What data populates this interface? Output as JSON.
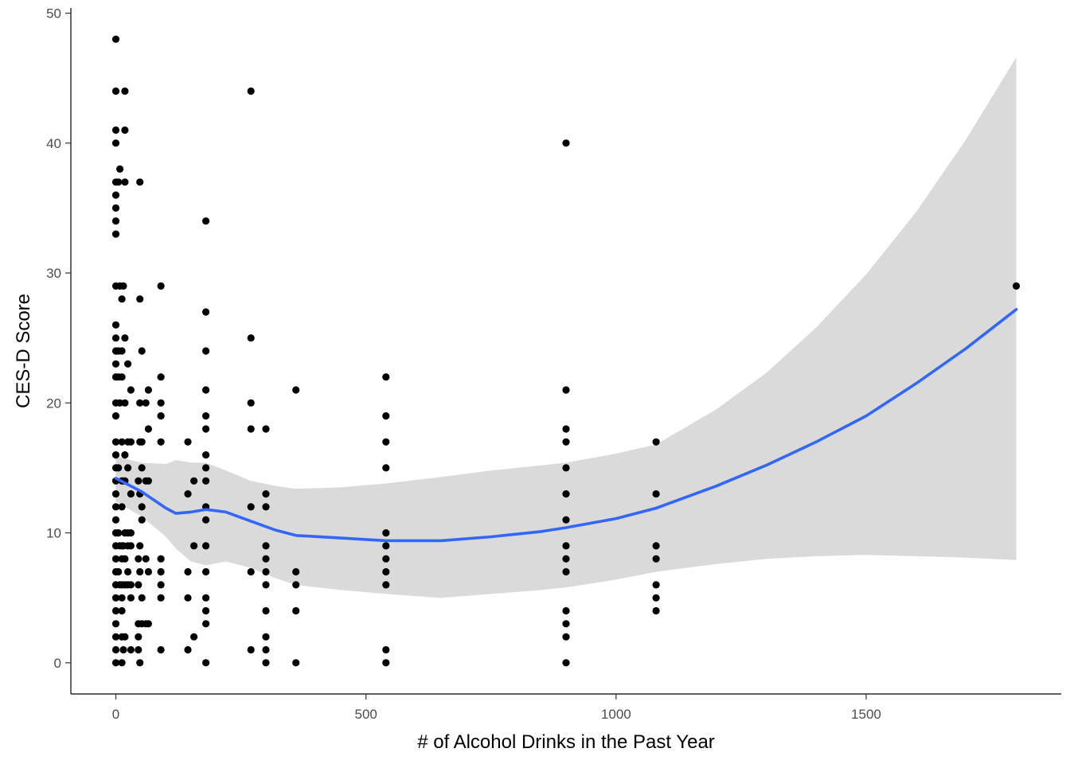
{
  "chart_data": {
    "type": "scatter",
    "title": "",
    "xlabel": "# of Alcohol Drinks in the Past Year",
    "ylabel": "CES-D Score",
    "xlim": [
      -90,
      1890
    ],
    "ylim": [
      -2.4,
      50.4
    ],
    "x_ticks": [
      0,
      500,
      1000,
      1500
    ],
    "y_ticks": [
      0,
      10,
      20,
      30,
      40,
      50
    ],
    "x_tick_labels": [
      "0",
      "500",
      "1000",
      "1500"
    ],
    "y_tick_labels": [
      "0",
      "10",
      "20",
      "30",
      "40",
      "50"
    ],
    "grid": false,
    "legend": "none",
    "colors": {
      "points": "#000000",
      "smooth_line": "#3366FF",
      "confidence_band": "#d6d6d6"
    },
    "points": [
      [
        0,
        48
      ],
      [
        0,
        44
      ],
      [
        0,
        41
      ],
      [
        0,
        40
      ],
      [
        0,
        37
      ],
      [
        0,
        36
      ],
      [
        0,
        35
      ],
      [
        0,
        34
      ],
      [
        0,
        33
      ],
      [
        0,
        29
      ],
      [
        0,
        26
      ],
      [
        0,
        25
      ],
      [
        0,
        24
      ],
      [
        0,
        23
      ],
      [
        0,
        22
      ],
      [
        0,
        20
      ],
      [
        0,
        19
      ],
      [
        0,
        17
      ],
      [
        0,
        16
      ],
      [
        0,
        15
      ],
      [
        0,
        14
      ],
      [
        0,
        13
      ],
      [
        0,
        12
      ],
      [
        0,
        11
      ],
      [
        0,
        10
      ],
      [
        0,
        9
      ],
      [
        0,
        8
      ],
      [
        0,
        7
      ],
      [
        0,
        6
      ],
      [
        0,
        5
      ],
      [
        0,
        4
      ],
      [
        0,
        3
      ],
      [
        0,
        2
      ],
      [
        0,
        1
      ],
      [
        0,
        0
      ],
      [
        5,
        37
      ],
      [
        5,
        24
      ],
      [
        5,
        22
      ],
      [
        5,
        15
      ],
      [
        5,
        10
      ],
      [
        5,
        7
      ],
      [
        8,
        38
      ],
      [
        8,
        29
      ],
      [
        8,
        20
      ],
      [
        8,
        9
      ],
      [
        8,
        6
      ],
      [
        12,
        28
      ],
      [
        12,
        24
      ],
      [
        12,
        22
      ],
      [
        12,
        17
      ],
      [
        12,
        14
      ],
      [
        12,
        12
      ],
      [
        12,
        9
      ],
      [
        12,
        8
      ],
      [
        12,
        6
      ],
      [
        12,
        5
      ],
      [
        12,
        4
      ],
      [
        12,
        2
      ],
      [
        12,
        0
      ],
      [
        15,
        29
      ],
      [
        15,
        14
      ],
      [
        15,
        9
      ],
      [
        15,
        1
      ],
      [
        18,
        44
      ],
      [
        18,
        41
      ],
      [
        18,
        37
      ],
      [
        18,
        25
      ],
      [
        18,
        20
      ],
      [
        18,
        16
      ],
      [
        18,
        14
      ],
      [
        18,
        10
      ],
      [
        18,
        8
      ],
      [
        18,
        6
      ],
      [
        18,
        2
      ],
      [
        24,
        23
      ],
      [
        24,
        17
      ],
      [
        24,
        15
      ],
      [
        24,
        10
      ],
      [
        24,
        9
      ],
      [
        24,
        7
      ],
      [
        24,
        6
      ],
      [
        30,
        21
      ],
      [
        30,
        17
      ],
      [
        30,
        13
      ],
      [
        30,
        10
      ],
      [
        30,
        9
      ],
      [
        30,
        6
      ],
      [
        30,
        5
      ],
      [
        30,
        1
      ],
      [
        45,
        14
      ],
      [
        45,
        8
      ],
      [
        45,
        6
      ],
      [
        45,
        3
      ],
      [
        45,
        2
      ],
      [
        45,
        1
      ],
      [
        48,
        37
      ],
      [
        48,
        28
      ],
      [
        48,
        20
      ],
      [
        48,
        17
      ],
      [
        48,
        13
      ],
      [
        48,
        9
      ],
      [
        48,
        7
      ],
      [
        48,
        0
      ],
      [
        52,
        24
      ],
      [
        52,
        17
      ],
      [
        52,
        15
      ],
      [
        52,
        12
      ],
      [
        52,
        11
      ],
      [
        52,
        5
      ],
      [
        52,
        3
      ],
      [
        60,
        20
      ],
      [
        60,
        14
      ],
      [
        60,
        8
      ],
      [
        60,
        3
      ],
      [
        65,
        21
      ],
      [
        65,
        18
      ],
      [
        65,
        14
      ],
      [
        65,
        7
      ],
      [
        65,
        3
      ],
      [
        90,
        29
      ],
      [
        90,
        22
      ],
      [
        90,
        20
      ],
      [
        90,
        19
      ],
      [
        90,
        17
      ],
      [
        90,
        8
      ],
      [
        90,
        7
      ],
      [
        90,
        6
      ],
      [
        90,
        5
      ],
      [
        90,
        1
      ],
      [
        144,
        17
      ],
      [
        144,
        13
      ],
      [
        144,
        7
      ],
      [
        144,
        5
      ],
      [
        144,
        1
      ],
      [
        156,
        14
      ],
      [
        156,
        9
      ],
      [
        156,
        2
      ],
      [
        180,
        34
      ],
      [
        180,
        27
      ],
      [
        180,
        24
      ],
      [
        180,
        21
      ],
      [
        180,
        19
      ],
      [
        180,
        18
      ],
      [
        180,
        16
      ],
      [
        180,
        15
      ],
      [
        180,
        14
      ],
      [
        180,
        12
      ],
      [
        180,
        11
      ],
      [
        180,
        9
      ],
      [
        180,
        7
      ],
      [
        180,
        5
      ],
      [
        180,
        4
      ],
      [
        180,
        3
      ],
      [
        180,
        0
      ],
      [
        270,
        44
      ],
      [
        270,
        25
      ],
      [
        270,
        20
      ],
      [
        270,
        18
      ],
      [
        270,
        12
      ],
      [
        270,
        7
      ],
      [
        270,
        1
      ],
      [
        300,
        18
      ],
      [
        300,
        13
      ],
      [
        300,
        12
      ],
      [
        300,
        9
      ],
      [
        300,
        8
      ],
      [
        300,
        7
      ],
      [
        300,
        6
      ],
      [
        300,
        4
      ],
      [
        300,
        2
      ],
      [
        300,
        1
      ],
      [
        300,
        0
      ],
      [
        360,
        21
      ],
      [
        360,
        7
      ],
      [
        360,
        6
      ],
      [
        360,
        4
      ],
      [
        360,
        0
      ],
      [
        540,
        22
      ],
      [
        540,
        19
      ],
      [
        540,
        17
      ],
      [
        540,
        15
      ],
      [
        540,
        10
      ],
      [
        540,
        9
      ],
      [
        540,
        8
      ],
      [
        540,
        7
      ],
      [
        540,
        6
      ],
      [
        540,
        1
      ],
      [
        540,
        0
      ],
      [
        900,
        40
      ],
      [
        900,
        21
      ],
      [
        900,
        18
      ],
      [
        900,
        17
      ],
      [
        900,
        15
      ],
      [
        900,
        13
      ],
      [
        900,
        11
      ],
      [
        900,
        9
      ],
      [
        900,
        8
      ],
      [
        900,
        7
      ],
      [
        900,
        4
      ],
      [
        900,
        3
      ],
      [
        900,
        2
      ],
      [
        900,
        0
      ],
      [
        1080,
        17
      ],
      [
        1080,
        13
      ],
      [
        1080,
        9
      ],
      [
        1080,
        8
      ],
      [
        1080,
        6
      ],
      [
        1080,
        5
      ],
      [
        1080,
        4
      ],
      [
        1800,
        29
      ]
    ],
    "smooth_fit": {
      "x": [
        0,
        50,
        100,
        120,
        150,
        180,
        220,
        270,
        320,
        360,
        450,
        540,
        650,
        750,
        850,
        900,
        1000,
        1080,
        1200,
        1300,
        1400,
        1500,
        1600,
        1700,
        1800
      ],
      "y": [
        14.2,
        13.2,
        11.9,
        11.5,
        11.6,
        11.8,
        11.6,
        10.9,
        10.2,
        9.8,
        9.6,
        9.4,
        9.4,
        9.7,
        10.1,
        10.4,
        11.1,
        11.9,
        13.6,
        15.2,
        17.0,
        19.0,
        21.5,
        24.2,
        27.2
      ],
      "lower": [
        12.4,
        11.3,
        9.7,
        8.8,
        7.8,
        7.5,
        7.8,
        7.3,
        6.5,
        6.0,
        5.6,
        5.3,
        5.0,
        5.3,
        5.6,
        5.8,
        6.4,
        7.0,
        7.6,
        8.0,
        8.2,
        8.3,
        8.2,
        8.1,
        7.9
      ],
      "upper": [
        15.9,
        15.4,
        15.3,
        15.6,
        15.4,
        15.4,
        14.8,
        14.0,
        13.6,
        13.4,
        13.5,
        13.8,
        14.3,
        14.8,
        15.2,
        15.4,
        16.1,
        16.8,
        19.5,
        22.3,
        25.8,
        29.9,
        34.7,
        40.3,
        46.6
      ]
    }
  }
}
